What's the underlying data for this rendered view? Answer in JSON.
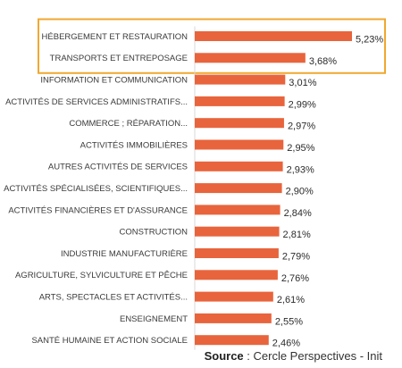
{
  "chart_data": {
    "type": "bar",
    "orientation": "horizontal",
    "categories": [
      "HÉBERGEMENT ET RESTAURATION",
      "TRANSPORTS ET ENTREPOSAGE",
      "INFORMATION ET COMMUNICATION",
      "ACTIVITÉS DE SERVICES ADMINISTRATIFS...",
      "COMMERCE ; RÉPARATION...",
      "ACTIVITÉS IMMOBILIÈRES",
      "AUTRES ACTIVITÉS DE SERVICES",
      "ACTIVITÉS SPÉCIALISÉES, SCIENTIFIQUES...",
      "ACTIVITÉS FINANCIÈRES ET D'ASSURANCE",
      "CONSTRUCTION",
      "INDUSTRIE MANUFACTURIÈRE",
      "AGRICULTURE, SYLVICULTURE ET PÊCHE",
      "ARTS, SPECTACLES ET ACTIVITÉS...",
      "ENSEIGNEMENT",
      "SANTÉ HUMAINE ET ACTION SOCIALE"
    ],
    "values": [
      5.23,
      3.68,
      3.01,
      2.99,
      2.97,
      2.95,
      2.93,
      2.9,
      2.84,
      2.81,
      2.79,
      2.76,
      2.61,
      2.55,
      2.46
    ],
    "value_labels": [
      "5,23%",
      "3,68%",
      "3,01%",
      "2,99%",
      "2,97%",
      "2,95%",
      "2,93%",
      "2,90%",
      "2,84%",
      "2,81%",
      "2,79%",
      "2,76%",
      "2,61%",
      "2,55%",
      "2,46%"
    ],
    "unit": "%",
    "highlighted_categories": [
      0,
      1
    ],
    "xlim": [
      0,
      5.23
    ],
    "grid": false,
    "legend": "none"
  },
  "colors": {
    "bar": "#E8643C",
    "highlight_frame": "#F0A830",
    "divider": "#d9d9d9"
  },
  "source": {
    "label": "Source",
    "separator": " : ",
    "text": "Cercle Perspectives - Init"
  }
}
